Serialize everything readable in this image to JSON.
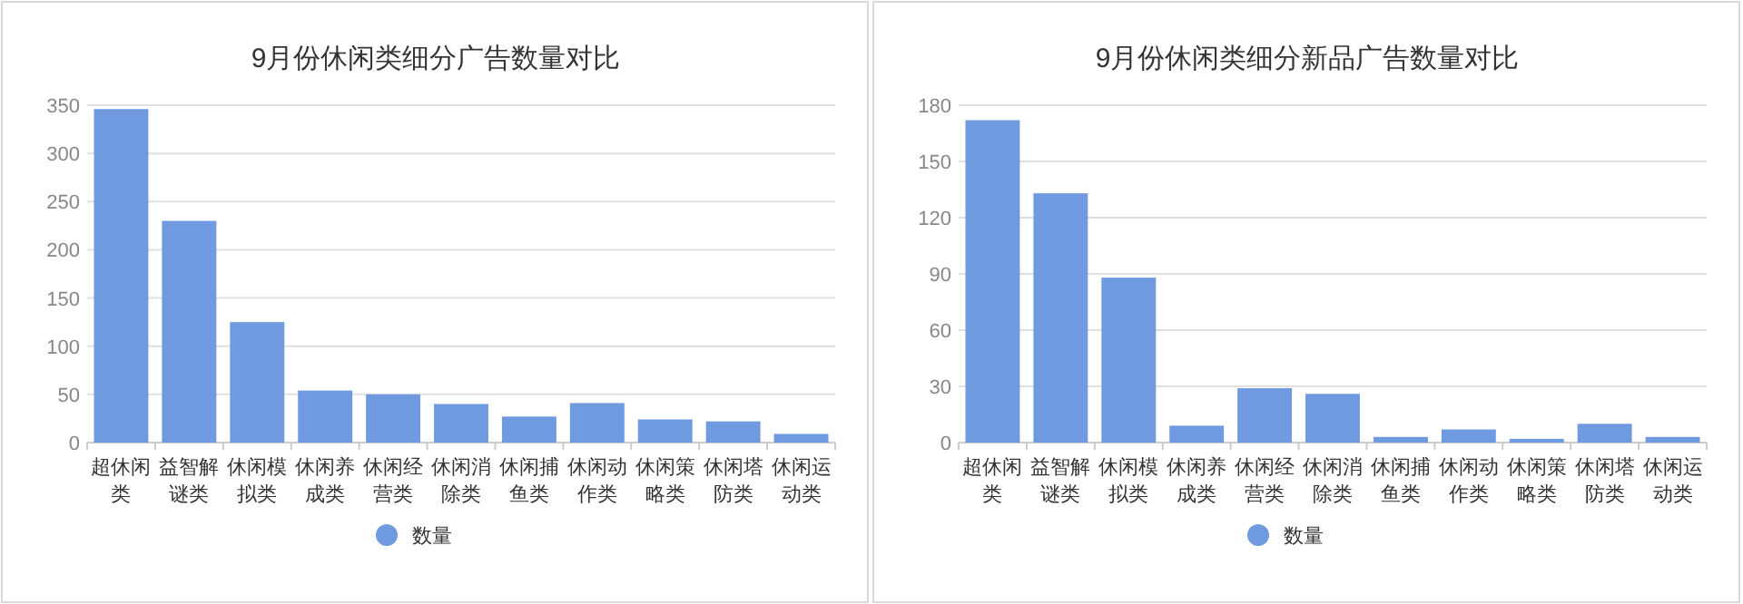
{
  "chart_data": [
    {
      "type": "bar",
      "title": "9月份休闲类细分广告数量对比",
      "categories": [
        "超休闲类",
        "益智解谜类",
        "休闲模拟类",
        "休闲养成类",
        "休闲经营类",
        "休闲消除类",
        "休闲捕鱼类",
        "休闲动作类",
        "休闲策略类",
        "休闲塔防类",
        "休闲运动类"
      ],
      "series": [
        {
          "name": "数量",
          "color": "#6f9ae0",
          "values": [
            346,
            230,
            125,
            54,
            50,
            40,
            27,
            41,
            24,
            22,
            9
          ]
        }
      ],
      "ylim": [
        0,
        350
      ],
      "yticks": [
        0,
        50,
        100,
        150,
        200,
        250,
        300,
        350
      ],
      "grid": "y",
      "legend": "bottom"
    },
    {
      "type": "bar",
      "title": "9月份休闲类细分新品广告数量对比",
      "categories": [
        "超休闲类",
        "益智解谜类",
        "休闲模拟类",
        "休闲养成类",
        "休闲经营类",
        "休闲消除类",
        "休闲捕鱼类",
        "休闲动作类",
        "休闲策略类",
        "休闲塔防类",
        "休闲运动类"
      ],
      "series": [
        {
          "name": "数量",
          "color": "#6f9ae0",
          "values": [
            172,
            133,
            88,
            9,
            29,
            26,
            3,
            7,
            2,
            10,
            3
          ]
        }
      ],
      "ylim": [
        0,
        180
      ],
      "yticks": [
        0,
        30,
        60,
        90,
        120,
        150,
        180
      ],
      "grid": "y",
      "legend": "bottom"
    }
  ]
}
